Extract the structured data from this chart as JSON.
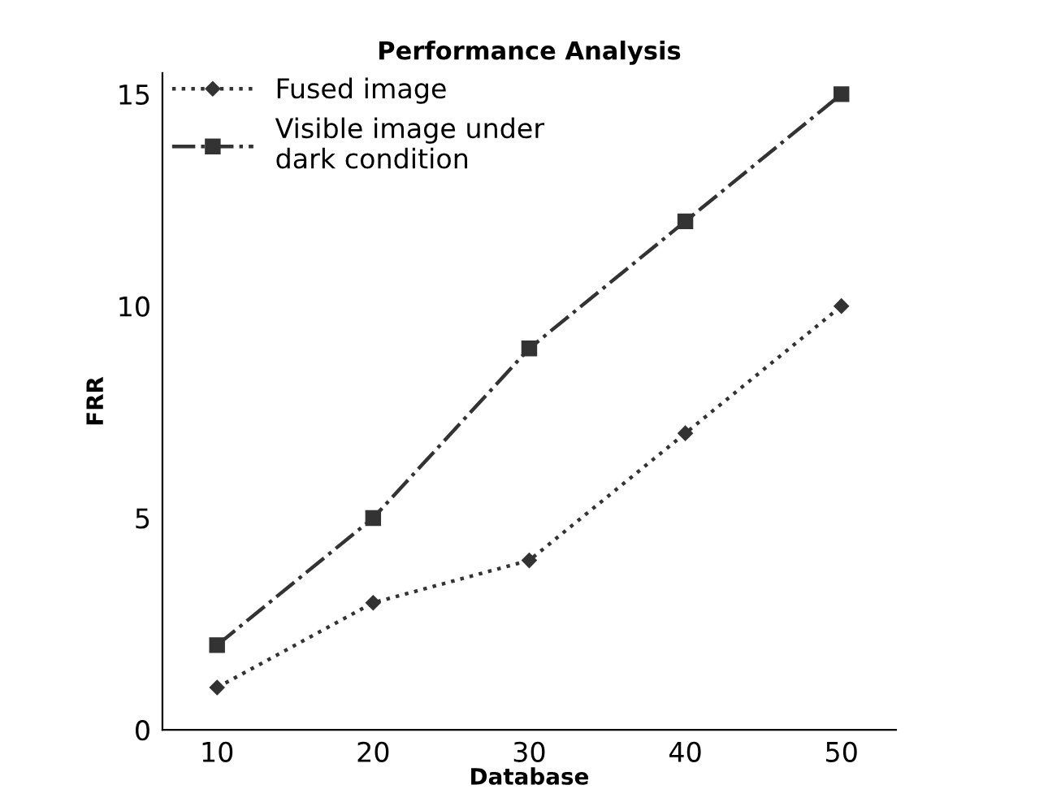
{
  "chart_data": {
    "type": "line",
    "title": "Performance Analysis",
    "xlabel": "Database",
    "ylabel": "FRR",
    "x": [
      10,
      20,
      30,
      40,
      50
    ],
    "series": [
      {
        "name": "Fused image",
        "color": "#333333",
        "values": [
          1,
          3,
          4,
          7,
          10
        ],
        "marker": "diamond",
        "line_style": "dotted"
      },
      {
        "name": "Visible image under\ndark condition",
        "color": "#333333",
        "values": [
          2,
          5,
          9,
          12,
          15
        ],
        "marker": "square",
        "line_style": "dashdot"
      }
    ],
    "xlim": [
      6.5,
      53.5
    ],
    "ylim": [
      0,
      15.5
    ],
    "xticks": [
      10,
      20,
      30,
      40,
      50
    ],
    "yticks": [
      0,
      5,
      10,
      15
    ],
    "grid": false,
    "legend": "top left"
  }
}
